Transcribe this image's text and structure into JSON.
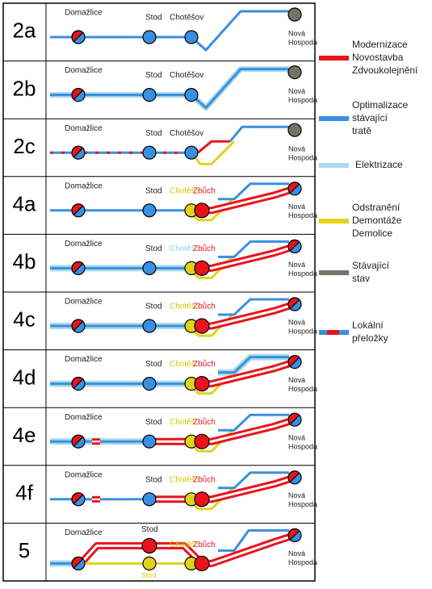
{
  "rows": [
    {
      "label": "2a",
      "stations": {
        "start": "Domažlice",
        "stod": "Stod",
        "chotesov": "Chotěšov",
        "end": [
          "Nová",
          "Hospoda"
        ]
      }
    },
    {
      "label": "2b",
      "stations": {
        "start": "Domažlice",
        "stod": "Stod",
        "chotesov": "Chotěšov",
        "end": [
          "Nová",
          "Hospoda"
        ]
      }
    },
    {
      "label": "2c",
      "stations": {
        "start": "Domažlice",
        "stod": "Stod",
        "chotesov": "Chotěšov",
        "end": [
          "Nová",
          "Hospoda"
        ]
      }
    },
    {
      "label": "4a",
      "stations": {
        "start": "Domažlice",
        "stod": "Stod",
        "chotesov": "Chotěš",
        "zbuch": "Zbůch",
        "end": [
          "Nová",
          "Hospoda"
        ]
      }
    },
    {
      "label": "4b",
      "stations": {
        "start": "Domažlice",
        "stod": "Stod",
        "chotesov": "Chotěš",
        "zbuch": "Zbůch",
        "end": [
          "Nová",
          "Hospoda"
        ]
      }
    },
    {
      "label": "4c",
      "stations": {
        "start": "Domažlice",
        "stod": "Stod",
        "chotesov": "Chotěš",
        "zbuch": "Zbůch",
        "end": [
          "Nová",
          "Hospoda"
        ]
      }
    },
    {
      "label": "4d",
      "stations": {
        "start": "Domažlice",
        "stod": "Stod",
        "chotesov": "Chotěš",
        "zbuch": "Zbůch",
        "end": [
          "Nová",
          "Hospoda"
        ]
      }
    },
    {
      "label": "4e",
      "stations": {
        "start": "Domažlice",
        "stod": "Stod",
        "chotesov": "Chotěš",
        "zbuch": "Zbůch",
        "end": [
          "Nová",
          "Hospoda"
        ]
      }
    },
    {
      "label": "4f",
      "stations": {
        "start": "Domažlice",
        "stod": "Stod",
        "chotesov": "Chotěš",
        "zbuch": "Zbůch",
        "end": [
          "Nová",
          "Hospoda"
        ]
      }
    },
    {
      "label": "5",
      "stations": {
        "start": "Domažlice",
        "stod": "Stod",
        "stod_alt": "Stod",
        "chotesov": "Chotěš",
        "zbuch": "Zbůch",
        "end": [
          "Nová",
          "Hospoda"
        ]
      }
    }
  ],
  "legend": [
    {
      "lines": [
        "Modernizace",
        "Novostavba",
        "Zdvoukolejnění"
      ]
    },
    {
      "lines": [
        "Optimalizace",
        "stávající",
        "tratě"
      ]
    },
    {
      "lines": [
        "Elektrizace"
      ]
    },
    {
      "lines": [
        "Odstranění",
        "Demontáže",
        "Demolice"
      ]
    },
    {
      "lines": [
        "Stávající",
        "stav"
      ]
    },
    {
      "lines": [
        "Lokální",
        "přeložky"
      ]
    }
  ]
}
